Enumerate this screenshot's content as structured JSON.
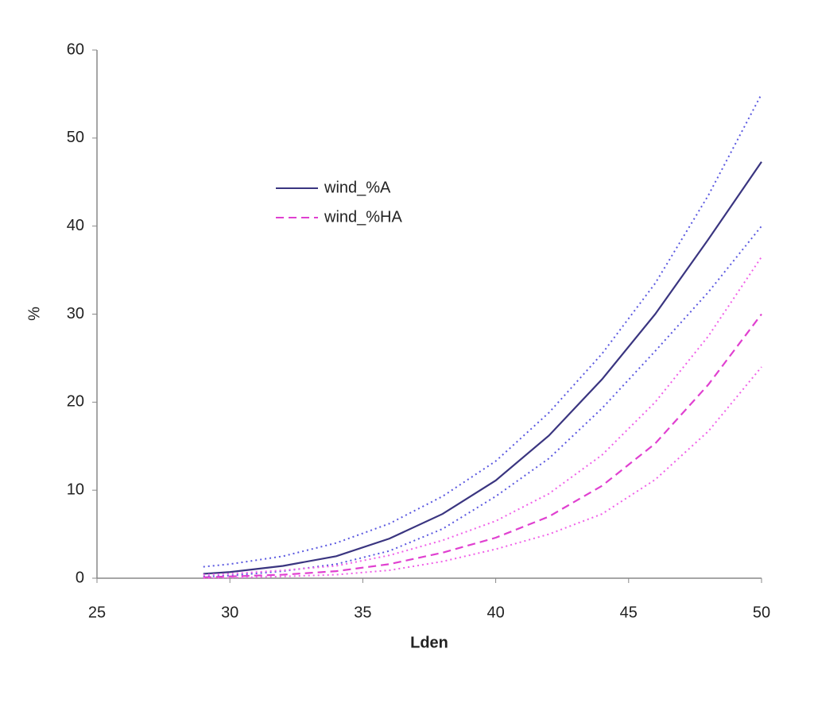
{
  "chart_data": {
    "type": "line",
    "x_label": "Lden",
    "y_label": "%",
    "x": [
      29,
      30,
      32,
      34,
      36,
      38,
      40,
      42,
      44,
      46,
      48,
      50
    ],
    "series": [
      {
        "name": "wind_%A",
        "color": "#3a3580",
        "dash": "solid",
        "values": [
          0.5,
          0.7,
          1.4,
          2.5,
          4.5,
          7.3,
          11.1,
          16.2,
          22.6,
          30,
          38.5,
          47.3
        ]
      },
      {
        "color": "#5a58e0",
        "dash": "dotted",
        "values": [
          1.3,
          1.6,
          2.5,
          4,
          6.2,
          9.3,
          13.3,
          18.8,
          25.5,
          33.5,
          43.5,
          55
        ]
      },
      {
        "color": "#5a58e0",
        "dash": "dotted",
        "values": [
          0.2,
          0.3,
          0.8,
          1.6,
          3.1,
          5.6,
          9.3,
          13.6,
          19.3,
          25.8,
          32.5,
          40
        ]
      },
      {
        "name": "wind_%HA",
        "color": "#e040d0",
        "dash": "dashed",
        "values": [
          0.1,
          0.2,
          0.4,
          0.8,
          1.6,
          2.9,
          4.6,
          7,
          10.5,
          15.3,
          22,
          30
        ]
      },
      {
        "color": "#f060e8",
        "dash": "dotted",
        "values": [
          0.4,
          0.5,
          0.9,
          1.4,
          2.6,
          4.3,
          6.5,
          9.6,
          14,
          20,
          27.5,
          36.5
        ]
      },
      {
        "color": "#f060e8",
        "dash": "dotted",
        "values": [
          0,
          0.05,
          0.2,
          0.4,
          0.9,
          1.9,
          3.3,
          5,
          7.3,
          11.2,
          16.7,
          24
        ]
      }
    ],
    "xlim": [
      25,
      50
    ],
    "xticks": [
      25,
      30,
      35,
      40,
      45,
      50
    ],
    "ylim": [
      0,
      60
    ],
    "yticks": [
      0,
      10,
      20,
      30,
      40,
      50,
      60
    ],
    "grid": false
  }
}
